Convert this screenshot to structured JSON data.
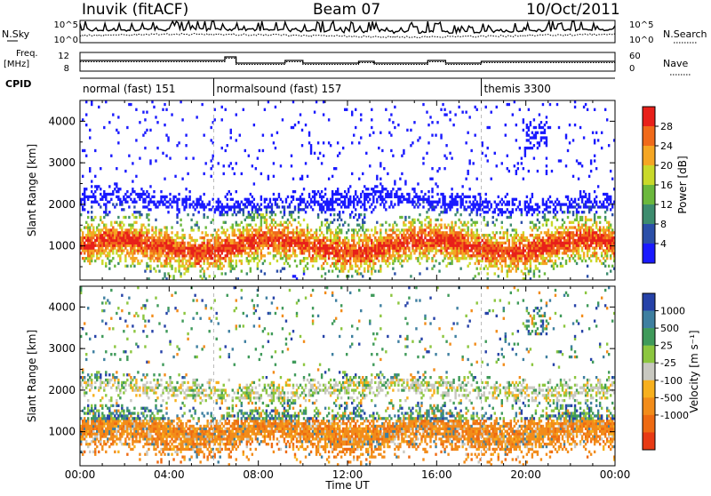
{
  "header": {
    "station": "Inuvik (fitACF)",
    "beam": "Beam 07",
    "date": "10/Oct/2011"
  },
  "strips": {
    "nsky_label": "N.Sky",
    "nsky_ticks": [
      "10^5",
      "10^0"
    ],
    "nsearch_label": "N.Search",
    "nsearch_ticks": [
      "10^5",
      "10^0"
    ],
    "freq_label_1": "Freq.",
    "freq_label_2": "[MHz]",
    "freq_ticks": [
      "12",
      "8"
    ],
    "nave_label": "Nave",
    "nave_ticks": [
      "60",
      "0"
    ],
    "cpid_label": "CPID"
  },
  "cpid_segments": [
    {
      "label": "normal (fast) 151",
      "start_hour": 0
    },
    {
      "label": "normalsound (fast) 157",
      "start_hour": 6
    },
    {
      "label": "themis 3300",
      "start_hour": 18
    }
  ],
  "colors": {
    "power_scale": [
      "#1a1aff",
      "#2b4fa8",
      "#3d8c6e",
      "#6bb83c",
      "#c9d92a",
      "#f5a623",
      "#f06a1a",
      "#e8201a"
    ],
    "velocity_scale": [
      "#2642a8",
      "#3e7fa0",
      "#3f9a5a",
      "#8cc63f",
      "#c8c8c0",
      "#f7b01e",
      "#f28c1a",
      "#ee6a12",
      "#e83a14"
    ]
  },
  "chart_data": [
    {
      "type": "heatmap",
      "title": "Power",
      "ylabel": "Slant Range [km]",
      "xlabel": "Time UT",
      "x_ticks": [
        "00:00",
        "04:00",
        "08:00",
        "12:00",
        "16:00",
        "20:00",
        "00:00"
      ],
      "xlim_hours": [
        0,
        24
      ],
      "y_ticks": [
        1000,
        2000,
        3000,
        4000
      ],
      "ylim": [
        180,
        4500
      ],
      "colorbar": {
        "label": "Power [dB]",
        "ticks": [
          "4",
          "8",
          "12",
          "16",
          "20",
          "24",
          "28"
        ],
        "range": [
          0,
          32
        ]
      }
    },
    {
      "type": "heatmap",
      "title": "Velocity",
      "ylabel": "Slant Range [km]",
      "xlabel": "Time UT",
      "x_ticks": [
        "00:00",
        "04:00",
        "08:00",
        "12:00",
        "16:00",
        "20:00",
        "00:00"
      ],
      "xlim_hours": [
        0,
        24
      ],
      "y_ticks": [
        1000,
        2000,
        3000,
        4000
      ],
      "ylim": [
        180,
        4500
      ],
      "colorbar": {
        "label": "Velocity [m s⁻¹]",
        "ticks": [
          "1000",
          "500",
          "25",
          "-25",
          "-100",
          "-500",
          "-1000"
        ]
      }
    }
  ]
}
